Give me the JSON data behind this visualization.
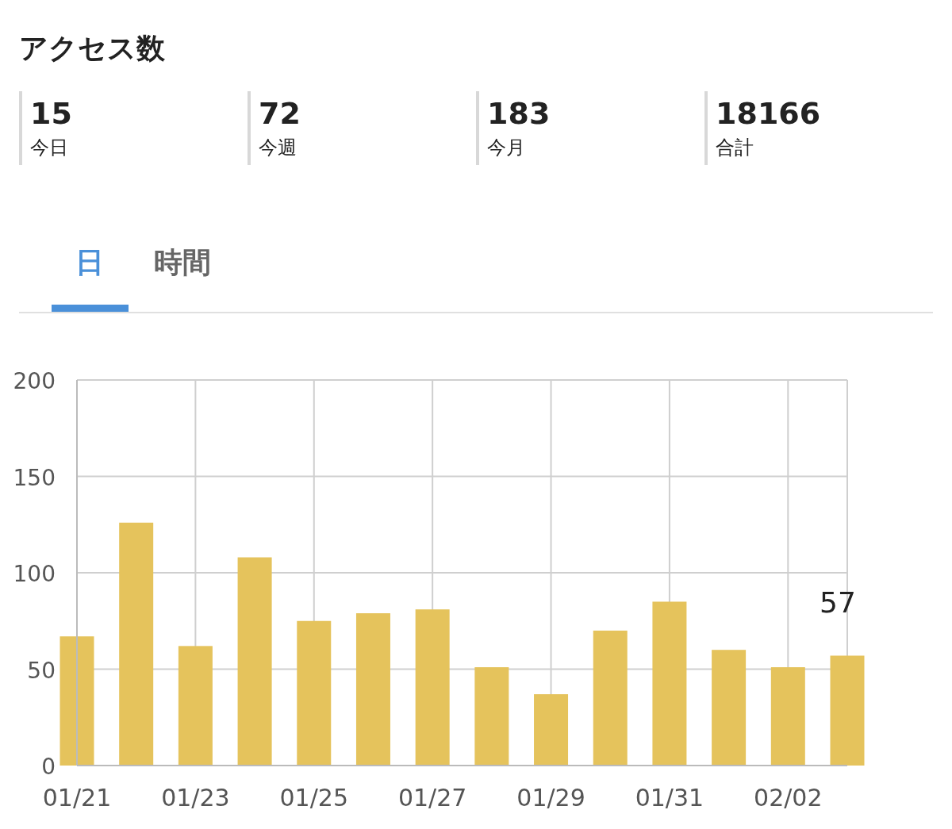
{
  "chart_data": [
    {
      "type": "other",
      "title": "アクセス数",
      "annotations": [
        "15",
        "今日",
        "72",
        "今週",
        "183",
        "今月",
        "18166",
        "合計",
        "日",
        "時間"
      ]
    },
    {
      "type": "bar",
      "categories": [
        "01/21",
        null,
        "01/23",
        null,
        "01/25",
        null,
        "01/27",
        null,
        "01/29",
        null,
        "01/31",
        null,
        "02/02",
        null
      ],
      "values": [
        67,
        126,
        62,
        108,
        75,
        79,
        81,
        51,
        37,
        70,
        85,
        60,
        51,
        57
      ],
      "value_labels": [
        null,
        null,
        null,
        null,
        null,
        null,
        null,
        null,
        null,
        null,
        null,
        null,
        null,
        "57"
      ],
      "color": "#e5c35c",
      "ylim": [
        0,
        200
      ],
      "yticks": [
        0,
        50,
        100,
        150,
        200
      ],
      "grid": true
    }
  ]
}
